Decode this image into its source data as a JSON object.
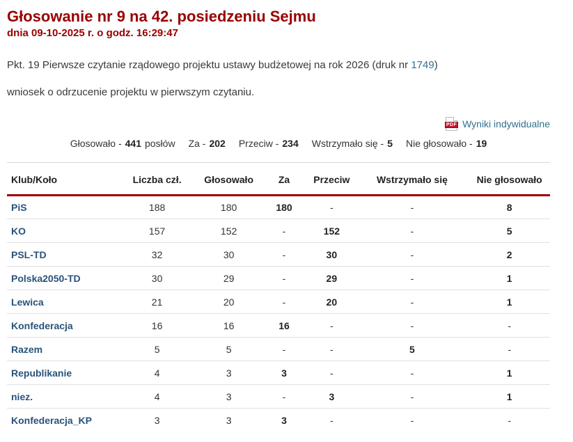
{
  "header": {
    "title": "Głosowanie nr 9 na 42. posiedzeniu Sejmu",
    "datetime": "dnia 09-10-2025 r. o godz. 16:29:47"
  },
  "description": {
    "point_text": "Pkt. 19 Pierwsze czytanie rządowego projektu ustawy budżetowej na rok 2026 (druk nr ",
    "druk_link": "1749",
    "point_text_end": ")",
    "motion_text": "wniosek o odrzucenie projektu w pierwszym czytaniu."
  },
  "results_link": {
    "pdf_icon_label": "PDF",
    "label": "Wyniki indywidualne"
  },
  "summary": {
    "items": [
      {
        "label": "Głosowało -",
        "value": "441",
        "suffix": "posłów"
      },
      {
        "label": "Za -",
        "value": "202",
        "suffix": ""
      },
      {
        "label": "Przeciw -",
        "value": "234",
        "suffix": ""
      },
      {
        "label": "Wstrzymało się -",
        "value": "5",
        "suffix": ""
      },
      {
        "label": "Nie głosowało -",
        "value": "19",
        "suffix": ""
      }
    ]
  },
  "table": {
    "columns": [
      "Klub/Koło",
      "Liczba czł.",
      "Głosowało",
      "Za",
      "Przeciw",
      "Wstrzymało się",
      "Nie głosowało"
    ],
    "rows": [
      {
        "club": "PiS",
        "members": "188",
        "voted": "180",
        "for": "180",
        "against": "-",
        "abstained": "-",
        "not_voted": "8"
      },
      {
        "club": "KO",
        "members": "157",
        "voted": "152",
        "for": "-",
        "against": "152",
        "abstained": "-",
        "not_voted": "5"
      },
      {
        "club": "PSL-TD",
        "members": "32",
        "voted": "30",
        "for": "-",
        "against": "30",
        "abstained": "-",
        "not_voted": "2"
      },
      {
        "club": "Polska2050-TD",
        "members": "30",
        "voted": "29",
        "for": "-",
        "against": "29",
        "abstained": "-",
        "not_voted": "1"
      },
      {
        "club": "Lewica",
        "members": "21",
        "voted": "20",
        "for": "-",
        "against": "20",
        "abstained": "-",
        "not_voted": "1"
      },
      {
        "club": "Konfederacja",
        "members": "16",
        "voted": "16",
        "for": "16",
        "against": "-",
        "abstained": "-",
        "not_voted": "-"
      },
      {
        "club": "Razem",
        "members": "5",
        "voted": "5",
        "for": "-",
        "against": "-",
        "abstained": "5",
        "not_voted": "-"
      },
      {
        "club": "Republikanie",
        "members": "4",
        "voted": "3",
        "for": "3",
        "against": "-",
        "abstained": "-",
        "not_voted": "1"
      },
      {
        "club": "niez.",
        "members": "4",
        "voted": "3",
        "for": "-",
        "against": "3",
        "abstained": "-",
        "not_voted": "1"
      },
      {
        "club": "Konfederacja_KP",
        "members": "3",
        "voted": "3",
        "for": "3",
        "against": "-",
        "abstained": "-",
        "not_voted": "-"
      }
    ]
  },
  "colors": {
    "title_red": "#990000",
    "rule_red": "#990000",
    "link_blue": "#31708f",
    "club_link_blue": "#29537a",
    "pdf_red": "#c4122f"
  }
}
